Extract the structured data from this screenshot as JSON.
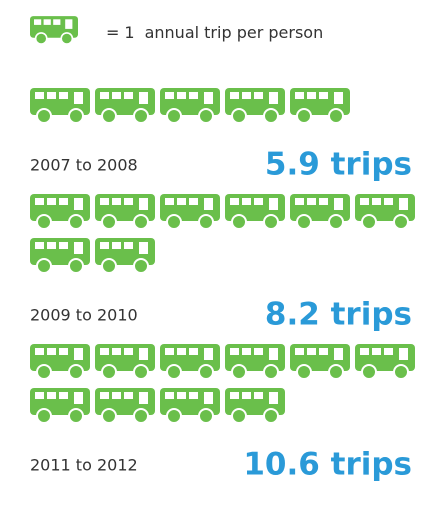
{
  "chart_data": {
    "type": "pictograph",
    "legend": {
      "symbol": "=",
      "value": 1,
      "text": "annual trip per person"
    },
    "categories": [
      "2007 to 2008",
      "2009 to 2010",
      "2011 to 2012"
    ],
    "values": [
      5.9,
      8.2,
      10.6
    ],
    "value_labels": [
      "5.9 trips",
      "8.2 trips",
      "10.6 trips"
    ],
    "color": "#6abf4b"
  }
}
